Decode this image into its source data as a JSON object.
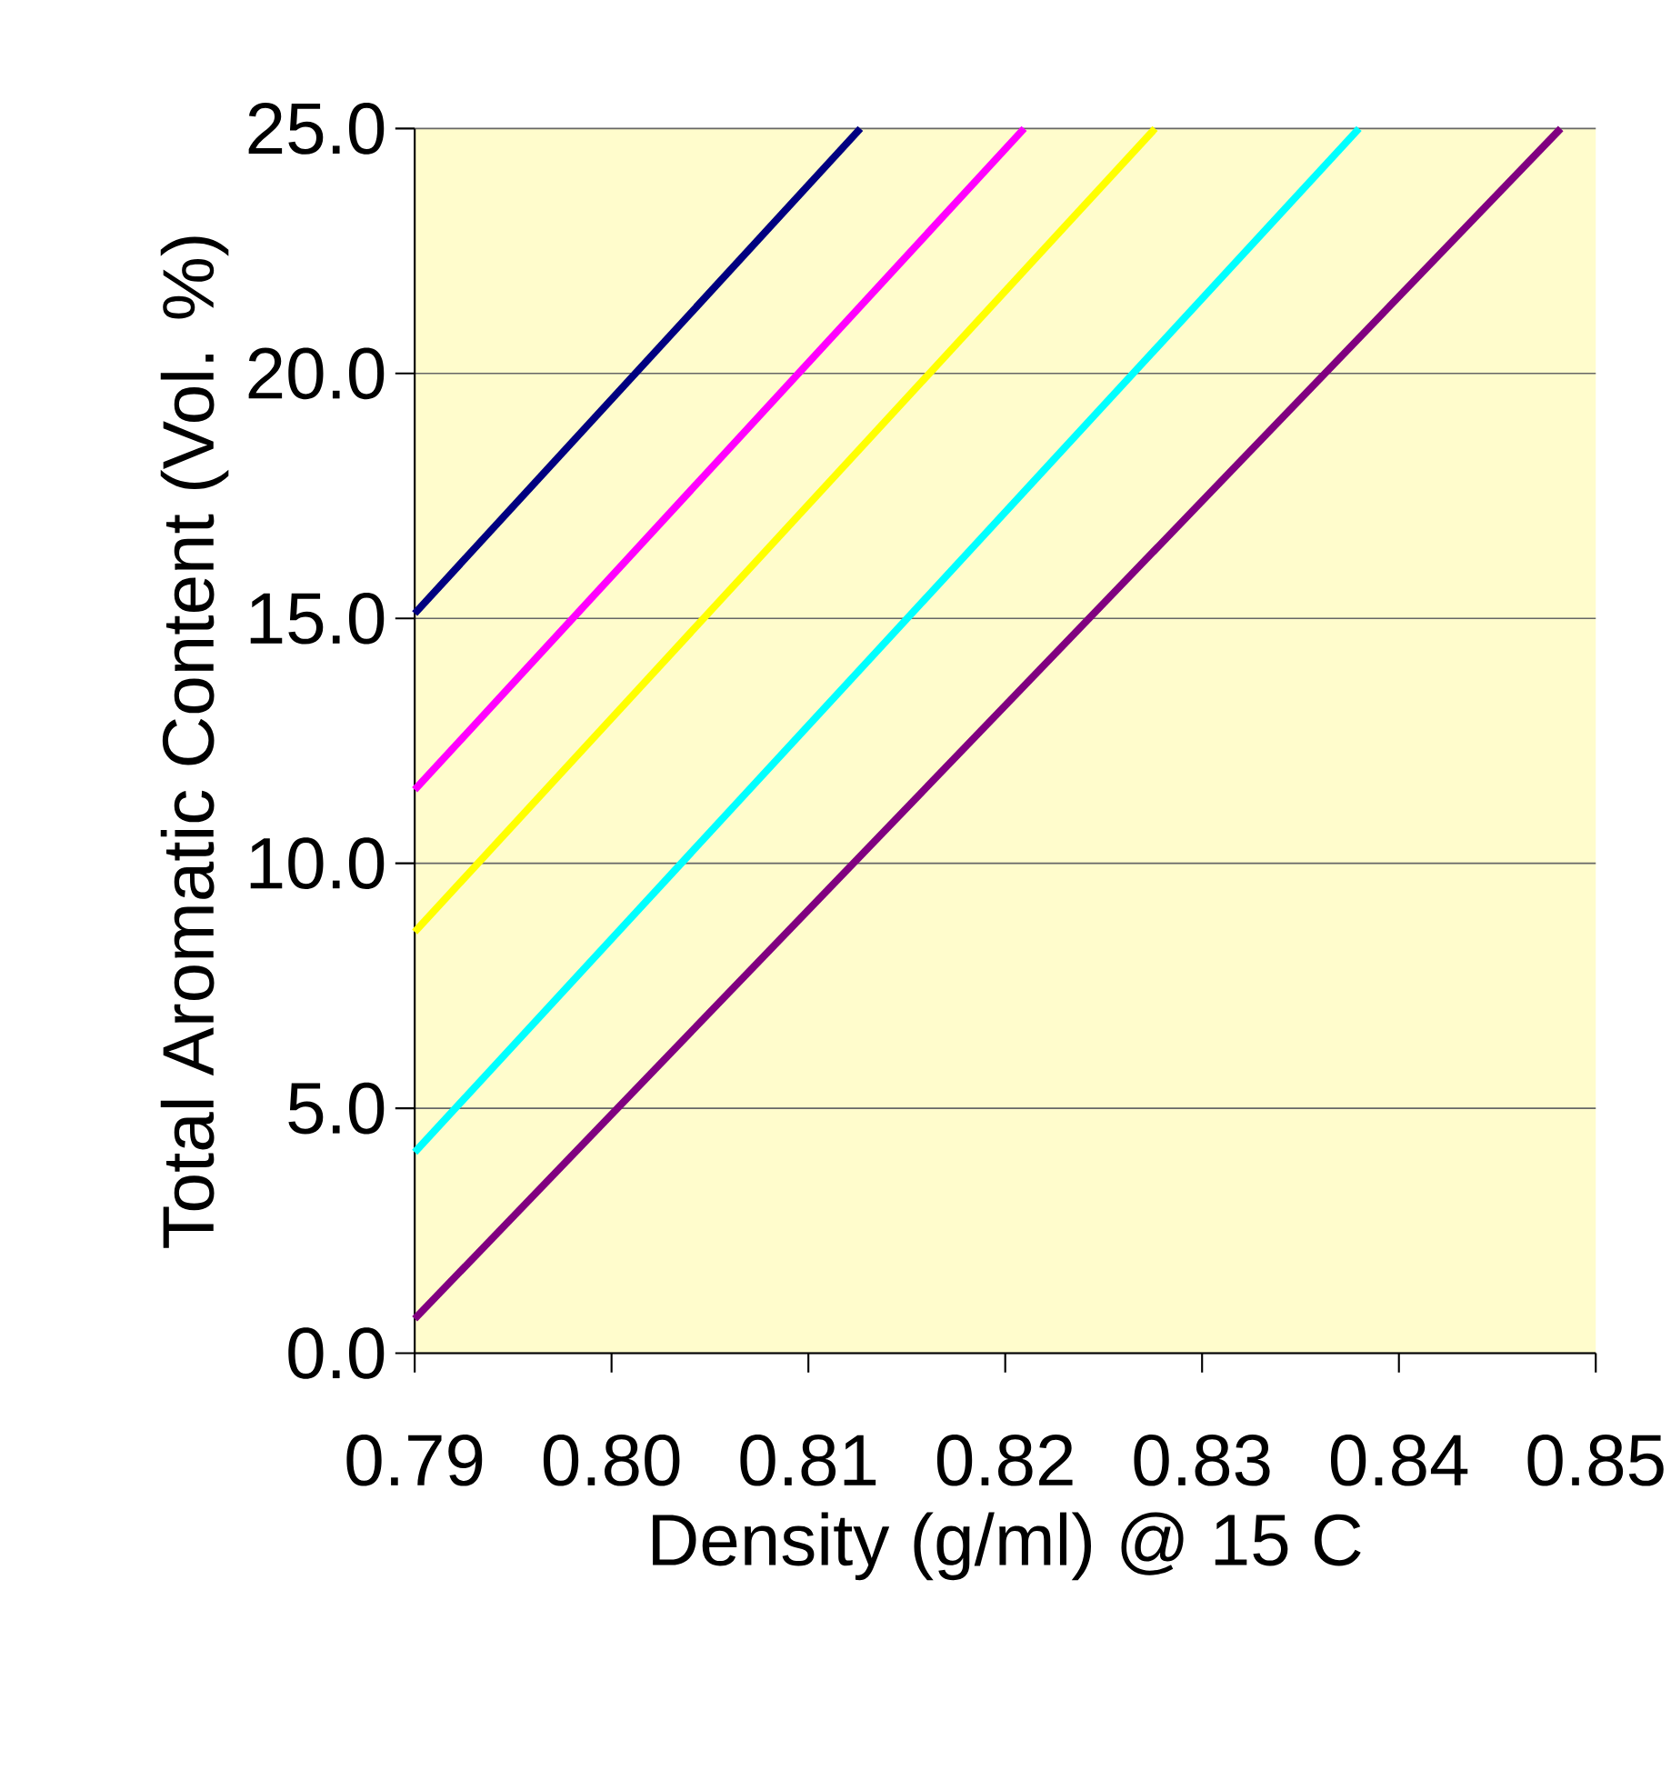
{
  "chart_data": {
    "type": "line",
    "xlabel": "Density (g/ml) @ 15 C",
    "ylabel": "Total Aromatic Content (Vol. %)",
    "series": [
      {
        "color": "#000080",
        "x": [
          0.79,
          0.81264
        ],
        "values": [
          15.1,
          25.0
        ]
      },
      {
        "color": "#ff00ff",
        "x": [
          0.79,
          0.82096
        ],
        "values": [
          11.5,
          25.0
        ]
      },
      {
        "color": "#ffff00",
        "x": [
          0.79,
          0.82761
        ],
        "values": [
          8.6,
          25.0
        ]
      },
      {
        "color": "#00ffff",
        "x": [
          0.79,
          0.83797
        ],
        "values": [
          4.1,
          25.0
        ]
      },
      {
        "color": "#800080",
        "x": [
          0.79,
          0.84822
        ],
        "values": [
          0.7,
          25.0
        ]
      }
    ],
    "xlim": [
      0.79,
      0.85
    ],
    "ylim": [
      0,
      25
    ],
    "xticks": [
      {
        "value": 0.79,
        "label": "0.79"
      },
      {
        "value": 0.8,
        "label": "0.80"
      },
      {
        "value": 0.81,
        "label": "0.81"
      },
      {
        "value": 0.82,
        "label": "0.82"
      },
      {
        "value": 0.83,
        "label": "0.83"
      },
      {
        "value": 0.84,
        "label": "0.84"
      },
      {
        "value": 0.85,
        "label": "0.85"
      }
    ],
    "yticks": [
      {
        "value": 0,
        "label": "0.0"
      },
      {
        "value": 5,
        "label": "5.0"
      },
      {
        "value": 10,
        "label": "10.0"
      },
      {
        "value": 15,
        "label": "15.0"
      },
      {
        "value": 20,
        "label": "20.0"
      },
      {
        "value": 25,
        "label": "25.0"
      }
    ],
    "grid": "y",
    "marker": "none",
    "line_style": "solid"
  }
}
